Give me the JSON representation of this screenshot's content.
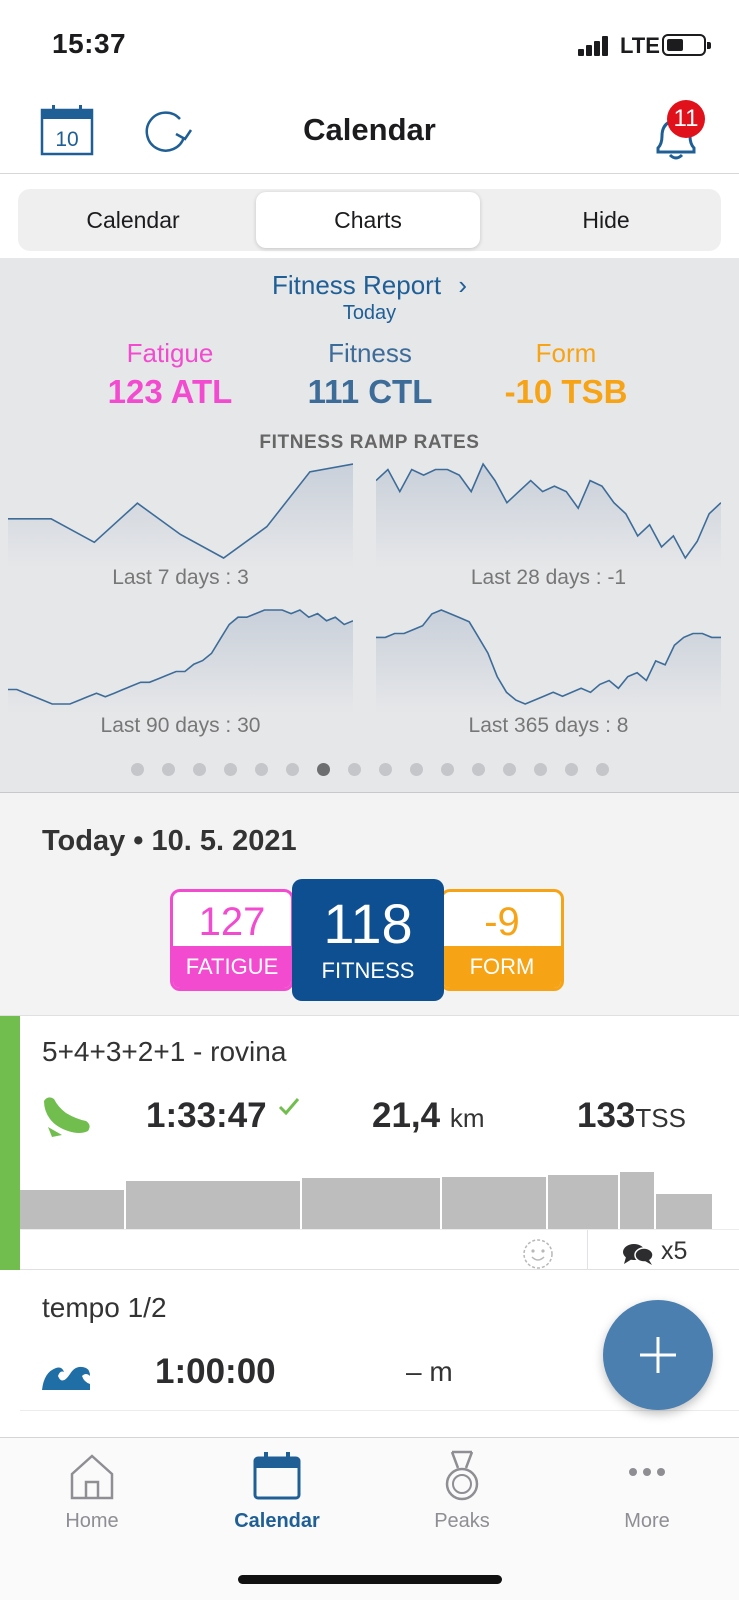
{
  "status_bar": {
    "time": "15:37",
    "network": "LTE"
  },
  "navbar": {
    "title": "Calendar",
    "calendar_day": "10",
    "notification_count": "11"
  },
  "segments": [
    {
      "label": "Calendar",
      "active": false
    },
    {
      "label": "Charts",
      "active": true
    },
    {
      "label": "Hide",
      "active": false
    }
  ],
  "fitness_report": {
    "link_label": "Fitness Report",
    "chevron": "›",
    "subtitle": "Today",
    "metrics": [
      {
        "label": "Fatigue",
        "value": "123 ATL",
        "color": "#f24bd0"
      },
      {
        "label": "Fitness",
        "value": "111 CTL",
        "color": "#3d6c99"
      },
      {
        "label": "Form",
        "value": "-10 TSB",
        "color": "#f7a316"
      }
    ],
    "ramp_title": "FITNESS RAMP RATES",
    "ramp_charts": [
      {
        "label": "Last 7 days : 3",
        "values": [
          5,
          5,
          2,
          7,
          3,
          0,
          4,
          11,
          12
        ]
      },
      {
        "label": "Last 28 days : -1",
        "values": [
          12,
          14,
          10,
          14,
          13,
          14,
          14,
          13,
          10,
          15,
          12,
          8,
          10,
          12,
          10,
          11,
          10,
          7,
          12,
          11,
          8,
          6,
          2,
          4,
          0,
          2,
          -2,
          1,
          6,
          8
        ]
      },
      {
        "label": "Last 90 days : 30",
        "values": [
          2,
          2,
          1,
          0,
          -1,
          -2,
          -2,
          -2,
          -1,
          0,
          1,
          0,
          1,
          2,
          3,
          4,
          4,
          5,
          6,
          7,
          7,
          9,
          10,
          12,
          16,
          20,
          22,
          22,
          23,
          24,
          24,
          24,
          23,
          24,
          22,
          23,
          21,
          22,
          20,
          21
        ]
      },
      {
        "label": "Last 365 days : 8",
        "values": [
          12,
          12,
          13,
          13,
          14,
          15,
          18,
          19,
          18,
          17,
          16,
          12,
          8,
          2,
          -2,
          -4,
          -5,
          -4,
          -3,
          -2,
          -3,
          -2,
          -1,
          -2,
          0,
          1,
          -1,
          2,
          3,
          1,
          6,
          5,
          10,
          12,
          13,
          13,
          12,
          12
        ]
      }
    ],
    "page_count": 16,
    "active_page": 6
  },
  "today": {
    "date_label": "Today • 10. 5. 2021",
    "fatigue": {
      "value": "127",
      "label": "FATIGUE"
    },
    "fitness": {
      "value": "118",
      "label": "FITNESS"
    },
    "form": {
      "value": "-9",
      "label": "FORM"
    }
  },
  "workout_1": {
    "name": "5+4+3+2+1 - rovina",
    "duration": "1:33:47",
    "distance": "21,4",
    "distance_unit": "km",
    "tss": "133",
    "tss_unit": "TSS",
    "comments": "x5",
    "stripe_color": "#71be4f",
    "interval_intensity": [
      0.52,
      0.64,
      0.68,
      0.7,
      0.72,
      0.76,
      0.47
    ]
  },
  "workout_2": {
    "name": "tempo 1/2",
    "duration": "1:00:00",
    "distance": "– m"
  },
  "tabbar": {
    "tabs": [
      {
        "label": "Home",
        "icon": "home-icon",
        "active": false
      },
      {
        "label": "Calendar",
        "icon": "calendar-icon",
        "active": true
      },
      {
        "label": "Peaks",
        "icon": "medal-icon",
        "active": false
      },
      {
        "label": "More",
        "icon": "more-icon",
        "active": false
      }
    ]
  }
}
